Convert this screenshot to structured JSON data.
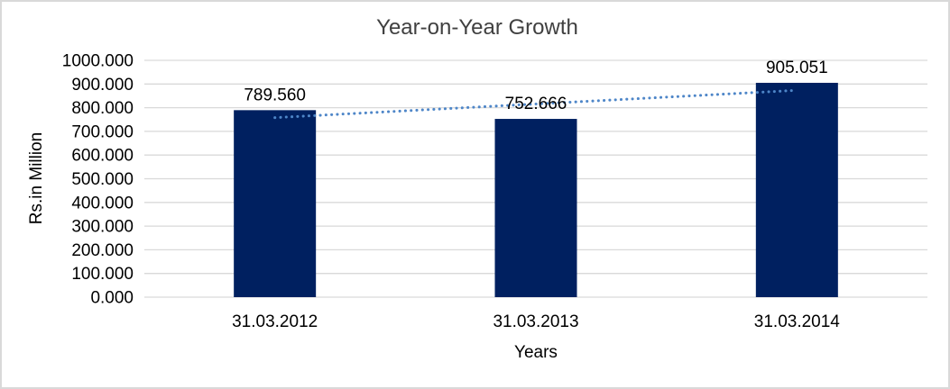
{
  "chart": {
    "background_color": "#FFFFFF",
    "frame_border_color": "#D9D9D9"
  },
  "chart_data": {
    "type": "bar",
    "title": "Year-on-Year Growth",
    "categories": [
      "31.03.2012",
      "31.03.2013",
      "31.03.2014"
    ],
    "values": [
      789.56,
      752.666,
      905.051
    ],
    "data_labels": [
      "789.560",
      "752.666",
      "905.051"
    ],
    "xlabel": "Years",
    "ylabel": "Rs.in Million",
    "ylim": [
      0,
      1000
    ],
    "ytick_step": 100,
    "ytick_labels": [
      "1000.000",
      "900.000",
      "800.000",
      "700.000",
      "600.000",
      "500.000",
      "400.000",
      "300.000",
      "200.000",
      "100.000",
      "0.000"
    ],
    "grid": true,
    "legend": "none",
    "bar_color": "#002060",
    "gridline_color": "#D9D9D9",
    "text_color": "#000000",
    "title_color": "#404040",
    "trendline": {
      "type": "linear",
      "style": "dotted",
      "color": "#4E86C8",
      "fit_values": [
        758.01,
        815.76,
        873.5
      ]
    }
  }
}
